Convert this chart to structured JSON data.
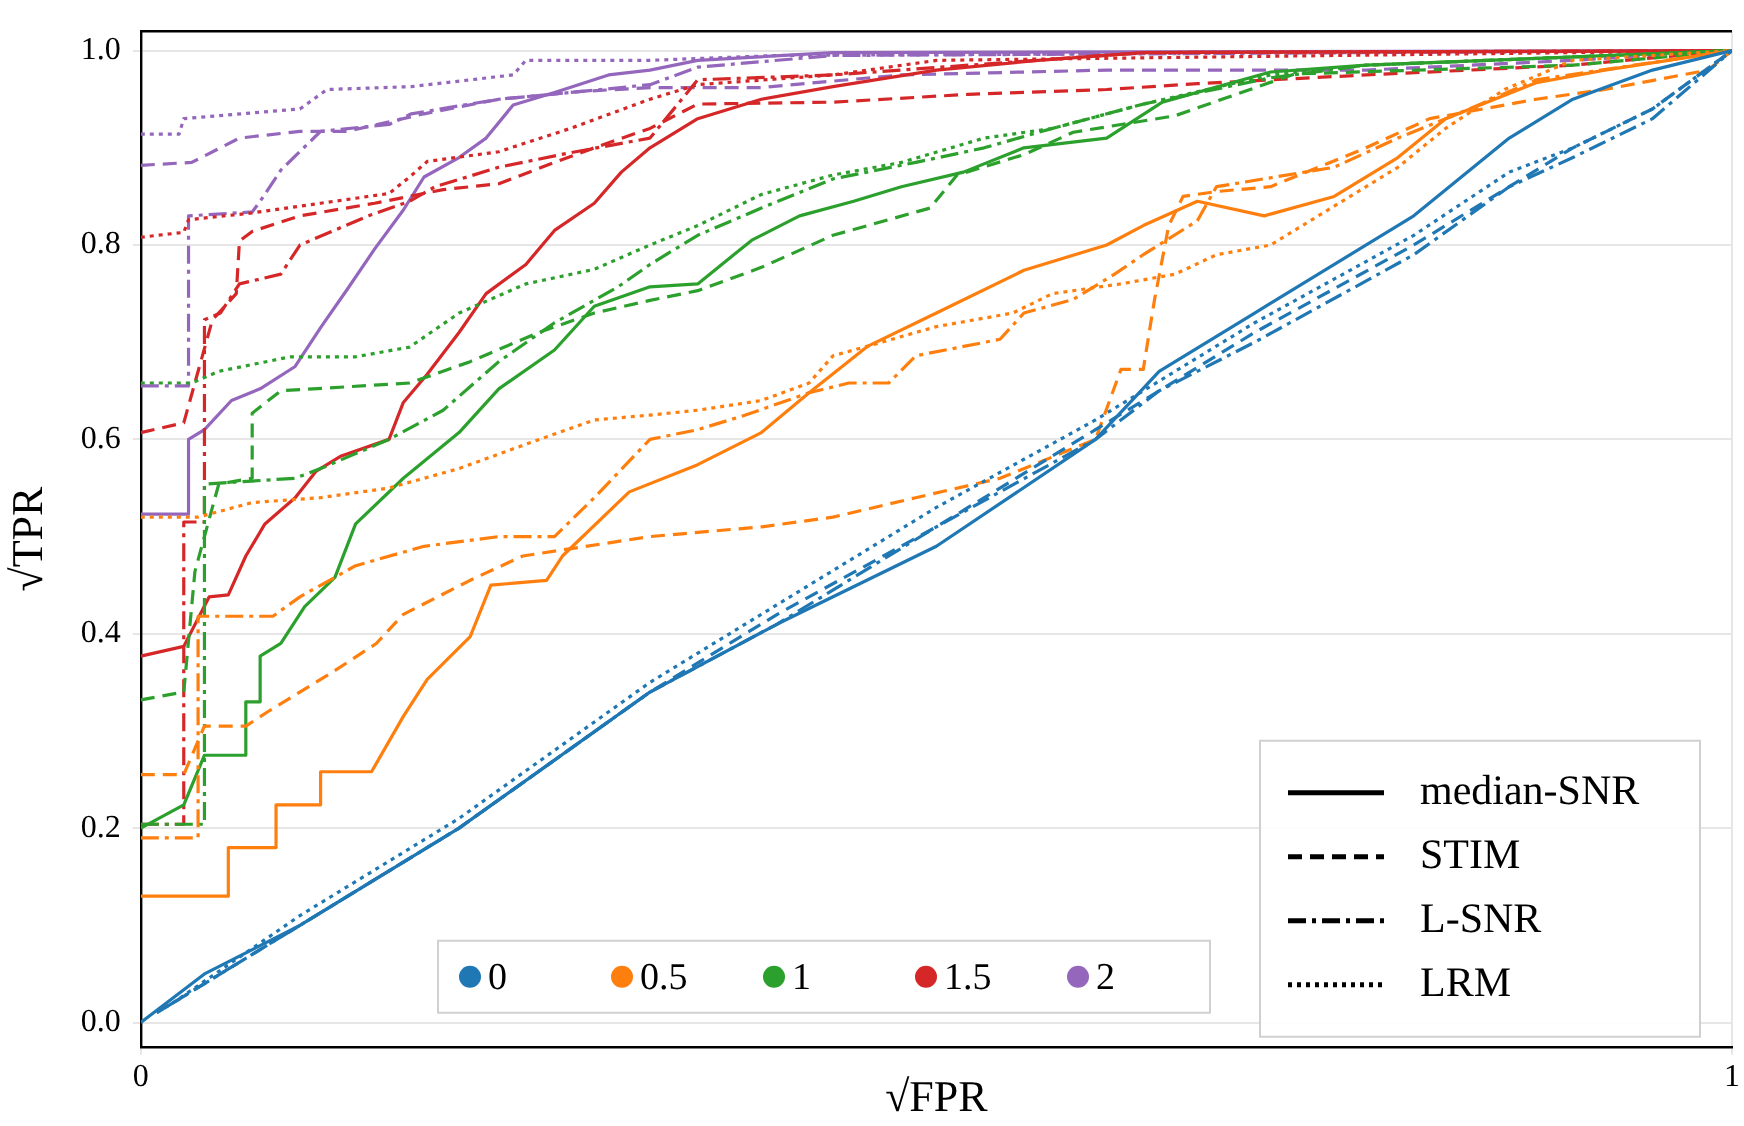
{
  "chart_data": {
    "type": "line",
    "xlabel": "√FPR",
    "ylabel": "√TPR",
    "xlim": [
      0,
      1
    ],
    "xticks": [
      0,
      1
    ],
    "ylim": [
      -0.025,
      1.02
    ],
    "yticks": [
      {
        "value": 0,
        "label": "0.0"
      },
      {
        "value": 0.2,
        "label": "0.2"
      },
      {
        "value": 0.4,
        "label": "0.4"
      },
      {
        "value": 0.6,
        "label": "0.6"
      },
      {
        "value": 0.8,
        "label": "0.8"
      },
      {
        "value": 1,
        "label": "1.0"
      }
    ],
    "grid": true,
    "legend": "bottom right",
    "marker": "none",
    "series": [
      {
        "color": "#1f77b4",
        "line_style": "solid",
        "x": [
          0,
          0.04,
          0.1,
          0.2,
          0.32,
          0.4,
          0.5,
          0.6,
          0.64,
          0.7,
          0.8,
          0.86,
          0.9,
          0.95,
          1
        ],
        "values": [
          0,
          0.05,
          0.1,
          0.2,
          0.34,
          0.41,
          0.49,
          0.6,
          0.67,
          0.73,
          0.83,
          0.91,
          0.95,
          0.98,
          1
        ]
      },
      {
        "color": "#1f77b4",
        "line_style": "dashed",
        "x": [
          0.01,
          0.1,
          0.2,
          0.32,
          0.4,
          0.5,
          0.6,
          0.64,
          0.7,
          0.8,
          0.86,
          0.9,
          0.95,
          1
        ],
        "values": [
          0.01,
          0.1,
          0.2,
          0.34,
          0.42,
          0.51,
          0.61,
          0.65,
          0.71,
          0.8,
          0.86,
          0.9,
          0.94,
          1
        ]
      },
      {
        "color": "#1f77b4",
        "line_style": "dashdot",
        "x": [
          0.015,
          0.1,
          0.2,
          0.32,
          0.4,
          0.5,
          0.6,
          0.64,
          0.7,
          0.8,
          0.86,
          0.9,
          0.95,
          1
        ],
        "values": [
          0.015,
          0.1,
          0.2,
          0.34,
          0.41,
          0.51,
          0.6,
          0.65,
          0.7,
          0.79,
          0.86,
          0.89,
          0.93,
          1
        ]
      },
      {
        "color": "#1f77b4",
        "line_style": "dotted",
        "x": [
          0.02,
          0.1,
          0.2,
          0.32,
          0.4,
          0.5,
          0.6,
          0.64,
          0.7,
          0.8,
          0.86,
          0.9,
          0.95,
          1
        ],
        "values": [
          0.02,
          0.11,
          0.21,
          0.35,
          0.43,
          0.53,
          0.62,
          0.66,
          0.72,
          0.81,
          0.875,
          0.9,
          0.94,
          1
        ]
      },
      {
        "color": "#ff7f0e",
        "line_style": "solid",
        "x": [
          0,
          0.055,
          0.055,
          0.085,
          0.085,
          0.113,
          0.113,
          0.145,
          0.165,
          0.18,
          0.207,
          0.22,
          0.255,
          0.265,
          0.307,
          0.35,
          0.39,
          0.42,
          0.457,
          0.5,
          0.555,
          0.607,
          0.63,
          0.664,
          0.706,
          0.75,
          0.79,
          0.82,
          0.877,
          0.92,
          1
        ],
        "values": [
          0.13,
          0.13,
          0.18,
          0.18,
          0.224,
          0.224,
          0.258,
          0.258,
          0.315,
          0.353,
          0.397,
          0.45,
          0.455,
          0.48,
          0.546,
          0.574,
          0.607,
          0.648,
          0.696,
          0.73,
          0.774,
          0.8,
          0.82,
          0.845,
          0.83,
          0.85,
          0.89,
          0.93,
          0.967,
          0.98,
          1
        ]
      },
      {
        "color": "#ff7f0e",
        "line_style": "dashed",
        "x": [
          0,
          0.027,
          0.04,
          0.066,
          0.08,
          0.12,
          0.148,
          0.165,
          0.207,
          0.24,
          0.32,
          0.39,
          0.435,
          0.487,
          0.54,
          0.6,
          0.616,
          0.63,
          0.637,
          0.646,
          0.655,
          0.676,
          0.71,
          0.77,
          0.81,
          0.877,
          0.92,
          0.985,
          1
        ],
        "values": [
          0.255,
          0.255,
          0.305,
          0.305,
          0.32,
          0.36,
          0.39,
          0.42,
          0.455,
          0.48,
          0.5,
          0.51,
          0.52,
          0.54,
          0.56,
          0.6,
          0.672,
          0.672,
          0.743,
          0.82,
          0.85,
          0.855,
          0.86,
          0.9,
          0.93,
          0.95,
          0.96,
          0.98,
          1
        ]
      },
      {
        "color": "#ff7f0e",
        "line_style": "dashdot",
        "x": [
          0,
          0.036,
          0.036,
          0.083,
          0.1,
          0.135,
          0.178,
          0.225,
          0.26,
          0.285,
          0.32,
          0.35,
          0.38,
          0.42,
          0.445,
          0.47,
          0.487,
          0.54,
          0.555,
          0.586,
          0.612,
          0.63,
          0.664,
          0.676,
          0.75,
          0.79,
          0.835,
          0.877,
          1
        ],
        "values": [
          0.19,
          0.19,
          0.418,
          0.418,
          0.438,
          0.47,
          0.49,
          0.5,
          0.5,
          0.54,
          0.6,
          0.61,
          0.625,
          0.648,
          0.658,
          0.658,
          0.686,
          0.703,
          0.73,
          0.744,
          0.77,
          0.79,
          0.825,
          0.86,
          0.88,
          0.91,
          0.94,
          0.97,
          1
        ]
      },
      {
        "color": "#ff7f0e",
        "line_style": "dotted",
        "x": [
          0,
          0.036,
          0.07,
          0.113,
          0.156,
          0.2,
          0.242,
          0.285,
          0.32,
          0.35,
          0.39,
          0.42,
          0.435,
          0.457,
          0.5,
          0.548,
          0.573,
          0.616,
          0.65,
          0.676,
          0.71,
          0.75,
          0.79,
          0.82,
          0.857,
          0.9,
          1
        ],
        "values": [
          0.52,
          0.52,
          0.535,
          0.54,
          0.55,
          0.57,
          0.595,
          0.62,
          0.625,
          0.63,
          0.64,
          0.658,
          0.686,
          0.696,
          0.716,
          0.73,
          0.75,
          0.76,
          0.77,
          0.79,
          0.8,
          0.84,
          0.88,
          0.92,
          0.96,
          0.99,
          1
        ]
      },
      {
        "color": "#2ca02c",
        "line_style": "solid",
        "x": [
          0,
          0.027,
          0.04,
          0.066,
          0.066,
          0.075,
          0.075,
          0.088,
          0.103,
          0.122,
          0.135,
          0.165,
          0.2,
          0.225,
          0.26,
          0.285,
          0.32,
          0.35,
          0.384,
          0.414,
          0.448,
          0.478,
          0.517,
          0.555,
          0.607,
          0.642,
          0.71,
          0.77,
          1
        ],
        "values": [
          0.2,
          0.224,
          0.275,
          0.275,
          0.33,
          0.33,
          0.377,
          0.39,
          0.428,
          0.458,
          0.513,
          0.56,
          0.607,
          0.652,
          0.692,
          0.737,
          0.757,
          0.76,
          0.805,
          0.83,
          0.845,
          0.86,
          0.875,
          0.9,
          0.91,
          0.947,
          0.978,
          0.985,
          1
        ]
      },
      {
        "color": "#2ca02c",
        "line_style": "dashed",
        "x": [
          0,
          0.027,
          0.034,
          0.049,
          0.07,
          0.07,
          0.088,
          0.169,
          0.207,
          0.25,
          0.285,
          0.32,
          0.35,
          0.39,
          0.435,
          0.496,
          0.513,
          0.555,
          0.586,
          0.65,
          0.725,
          0.9,
          1
        ],
        "values": [
          0.332,
          0.34,
          0.464,
          0.554,
          0.56,
          0.627,
          0.65,
          0.658,
          0.68,
          0.71,
          0.73,
          0.743,
          0.753,
          0.777,
          0.81,
          0.838,
          0.872,
          0.893,
          0.916,
          0.933,
          0.976,
          0.985,
          1
        ]
      },
      {
        "color": "#2ca02c",
        "line_style": "dashdot",
        "x": [
          0,
          0.04,
          0.04,
          0.097,
          0.113,
          0.156,
          0.19,
          0.225,
          0.26,
          0.3,
          0.32,
          0.35,
          0.39,
          0.435,
          0.487,
          0.53,
          0.573,
          0.63,
          0.71,
          0.77,
          1
        ],
        "values": [
          0.204,
          0.204,
          0.554,
          0.56,
          0.57,
          0.6,
          0.63,
          0.68,
          0.72,
          0.757,
          0.78,
          0.81,
          0.838,
          0.868,
          0.885,
          0.9,
          0.92,
          0.945,
          0.972,
          0.985,
          1
        ]
      },
      {
        "color": "#2ca02c",
        "line_style": "dotted",
        "x": [
          0,
          0.032,
          0.049,
          0.094,
          0.135,
          0.169,
          0.2,
          0.242,
          0.285,
          0.32,
          0.35,
          0.39,
          0.435,
          0.478,
          0.53,
          0.573,
          0.63,
          0.71,
          0.77,
          1
        ],
        "values": [
          0.658,
          0.658,
          0.67,
          0.685,
          0.685,
          0.695,
          0.73,
          0.76,
          0.775,
          0.8,
          0.82,
          0.852,
          0.872,
          0.885,
          0.91,
          0.92,
          0.945,
          0.975,
          0.985,
          1
        ]
      },
      {
        "color": "#d62728",
        "line_style": "solid",
        "x": [
          0,
          0.027,
          0.043,
          0.055,
          0.066,
          0.078,
          0.097,
          0.11,
          0.126,
          0.156,
          0.165,
          0.18,
          0.2,
          0.217,
          0.242,
          0.26,
          0.285,
          0.302,
          0.32,
          0.35,
          0.39,
          0.435,
          0.5,
          0.564,
          0.63,
          1
        ],
        "values": [
          0.377,
          0.387,
          0.438,
          0.44,
          0.48,
          0.513,
          0.54,
          0.567,
          0.583,
          0.6,
          0.638,
          0.667,
          0.71,
          0.75,
          0.78,
          0.815,
          0.843,
          0.875,
          0.9,
          0.93,
          0.95,
          0.963,
          0.98,
          0.99,
          0.998,
          1
        ]
      },
      {
        "color": "#d62728",
        "line_style": "dashed",
        "x": [
          0,
          0.027,
          0.045,
          0.06,
          0.062,
          0.07,
          0.1,
          0.147,
          0.19,
          0.225,
          0.26,
          0.285,
          0.32,
          0.35,
          0.435,
          0.52,
          0.607,
          0.664,
          0.77,
          0.9,
          1
        ],
        "values": [
          0.607,
          0.617,
          0.723,
          0.75,
          0.804,
          0.814,
          0.83,
          0.843,
          0.857,
          0.863,
          0.885,
          0.9,
          0.92,
          0.945,
          0.947,
          0.955,
          0.96,
          0.966,
          0.975,
          0.985,
          1
        ]
      },
      {
        "color": "#d62728",
        "line_style": "dashdot",
        "x": [
          0,
          0.027,
          0.027,
          0.04,
          0.04,
          0.05,
          0.062,
          0.088,
          0.1,
          0.143,
          0.169,
          0.185,
          0.225,
          0.27,
          0.32,
          0.35,
          0.435,
          0.52,
          0.63,
          1
        ],
        "values": [
          0.204,
          0.204,
          0.515,
          0.515,
          0.723,
          0.73,
          0.76,
          0.77,
          0.8,
          0.83,
          0.845,
          0.86,
          0.88,
          0.895,
          0.91,
          0.97,
          0.975,
          0.985,
          0.998,
          1
        ]
      },
      {
        "color": "#d62728",
        "line_style": "dotted",
        "x": [
          0,
          0.027,
          0.03,
          0.07,
          0.113,
          0.156,
          0.169,
          0.18,
          0.225,
          0.27,
          0.32,
          0.35,
          0.435,
          0.5,
          1
        ],
        "values": [
          0.808,
          0.813,
          0.826,
          0.833,
          0.843,
          0.853,
          0.87,
          0.886,
          0.896,
          0.92,
          0.95,
          0.965,
          0.975,
          0.99,
          1
        ]
      },
      {
        "color": "#9467bd",
        "line_style": "solid",
        "x": [
          0,
          0.03,
          0.03,
          0.04,
          0.057,
          0.075,
          0.097,
          0.113,
          0.13,
          0.147,
          0.165,
          0.178,
          0.2,
          0.217,
          0.234,
          0.26,
          0.294,
          0.32,
          0.35,
          0.435,
          1
        ],
        "values": [
          0.523,
          0.523,
          0.6,
          0.61,
          0.64,
          0.652,
          0.675,
          0.715,
          0.755,
          0.796,
          0.836,
          0.87,
          0.89,
          0.91,
          0.944,
          0.957,
          0.975,
          0.98,
          0.99,
          0.998,
          1
        ]
      },
      {
        "color": "#9467bd",
        "line_style": "dashed",
        "x": [
          0,
          0.032,
          0.062,
          0.1,
          0.13,
          0.178,
          0.225,
          0.277,
          0.32,
          0.39,
          0.478,
          0.607,
          0.77,
          0.9,
          1
        ],
        "values": [
          0.882,
          0.885,
          0.91,
          0.917,
          0.917,
          0.935,
          0.95,
          0.958,
          0.962,
          0.962,
          0.975,
          0.98,
          0.98,
          0.99,
          1
        ]
      },
      {
        "color": "#9467bd",
        "line_style": "dashdot",
        "x": [
          0,
          0.03,
          0.03,
          0.07,
          0.075,
          0.088,
          0.113,
          0.156,
          0.17,
          0.225,
          0.277,
          0.32,
          0.35,
          0.435,
          1
        ],
        "values": [
          0.655,
          0.655,
          0.83,
          0.834,
          0.845,
          0.877,
          0.917,
          0.924,
          0.935,
          0.95,
          0.958,
          0.965,
          0.983,
          0.995,
          1
        ]
      },
      {
        "color": "#9467bd",
        "line_style": "dotted",
        "x": [
          0,
          0.024,
          0.027,
          0.1,
          0.117,
          0.17,
          0.234,
          0.242,
          0.32,
          0.4,
          1
        ],
        "values": [
          0.914,
          0.914,
          0.93,
          0.94,
          0.96,
          0.963,
          0.975,
          0.99,
          0.99,
          0.995,
          1
        ]
      },
      {
        "name": "0",
        "color": "#1f77b4",
        "marker": "circle"
      },
      {
        "name": "0.5",
        "color": "#ff7f0e",
        "marker": "circle"
      },
      {
        "name": "1",
        "color": "#2ca02c",
        "marker": "circle"
      },
      {
        "name": "1.5",
        "color": "#d62728",
        "marker": "circle"
      },
      {
        "name": "2",
        "color": "#9467bd",
        "marker": "circle"
      },
      {
        "name": "median-SNR",
        "color": "#000000",
        "line_style": "solid"
      },
      {
        "name": "STIM",
        "color": "#000000",
        "line_style": "dashed"
      },
      {
        "name": "L-SNR",
        "color": "#000000",
        "line_style": "dashdot"
      },
      {
        "name": "LRM",
        "color": "#000000",
        "line_style": "dotted"
      }
    ]
  }
}
